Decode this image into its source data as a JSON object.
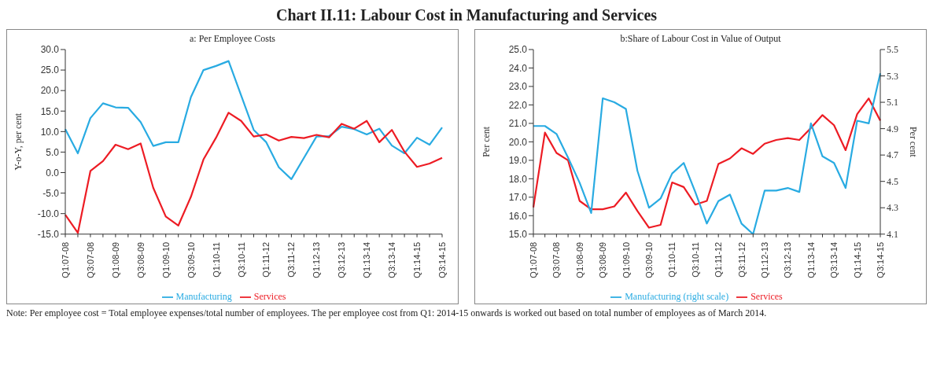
{
  "chart_data": [
    {
      "type": "line",
      "title": "Chart II.11: Labour Cost in Manufacturing and Services",
      "subtitle": "a: Per Employee Costs",
      "ylabel": "Y-o-Y, per cent",
      "categories": [
        "Q1:07-08",
        null,
        "Q3:07-08",
        null,
        "Q1:08-09",
        null,
        "Q3:08-09",
        null,
        "Q1:09-10",
        null,
        "Q3:09-10",
        null,
        "Q1:10-11",
        null,
        "Q3:10-11",
        null,
        "Q1:11-12",
        null,
        "Q3:11-12",
        null,
        "Q1:12-13",
        null,
        "Q3:12-13",
        null,
        "Q1:13-14",
        null,
        "Q3:13-14",
        null,
        "Q1:14-15",
        null,
        "Q3:14-15"
      ],
      "series": [
        {
          "name": "Manufacturing",
          "color": "#29abe2",
          "values": [
            10.6,
            4.7,
            13.3,
            16.9,
            15.9,
            15.8,
            12.3,
            6.5,
            7.4,
            7.4,
            18.4,
            25.0,
            26.0,
            27.2,
            18.8,
            10.4,
            7.4,
            1.3,
            -1.6,
            3.6,
            8.8,
            8.9,
            11.2,
            10.6,
            9.3,
            10.7,
            6.6,
            4.7,
            8.5,
            6.8,
            11.0
          ]
        },
        {
          "name": "Services",
          "color": "#ed1c24",
          "values": [
            -10.3,
            -14.7,
            0.4,
            2.8,
            6.8,
            5.7,
            7.1,
            -3.7,
            -10.7,
            -12.9,
            -5.9,
            3.2,
            8.5,
            14.6,
            12.6,
            8.8,
            9.3,
            7.8,
            8.7,
            8.4,
            9.2,
            8.6,
            11.9,
            10.7,
            12.6,
            7.4,
            10.4,
            5.1,
            1.4,
            2.2,
            3.6
          ]
        }
      ],
      "ylim": [
        -15,
        30
      ],
      "yticks": [
        {
          "value": -15,
          "label": "-15.0"
        },
        {
          "value": -10,
          "label": "-10.0"
        },
        {
          "value": -5,
          "label": "-5.0"
        },
        {
          "value": 0,
          "label": "0.0"
        },
        {
          "value": 5,
          "label": "5.0"
        },
        {
          "value": 10,
          "label": "10.0"
        },
        {
          "value": 15,
          "label": "15.0"
        },
        {
          "value": 20,
          "label": "20.0"
        },
        {
          "value": 25,
          "label": "25.0"
        },
        {
          "value": 30,
          "label": "30.0"
        }
      ],
      "legend": "bottom",
      "marker": "none",
      "line_style": "solid",
      "annotations": [
        "Note: Per employee cost = Total employee expenses/total number of employees. The per employee cost from Q1: 2014-15 onwards is worked out based on total number of employees as of March 2014."
      ]
    },
    {
      "type": "line",
      "subtitle": "b:Share of Labour Cost in Value of Output",
      "ylabel": "Per cent",
      "y2label": "Per cent",
      "categories": [
        "Q1:07-08",
        null,
        "Q3:07-08",
        null,
        "Q1:08-09",
        null,
        "Q3:08-09",
        null,
        "Q1:09-10",
        null,
        "Q3:09-10",
        null,
        "Q1:10-11",
        null,
        "Q3:10-11",
        null,
        "Q1:11-12",
        null,
        "Q3:11-12",
        null,
        "Q1:12-13",
        null,
        "Q3:12-13",
        null,
        "Q1:13-14",
        null,
        "Q3:13-14",
        null,
        "Q1:14-15",
        null,
        "Q3:14-15"
      ],
      "series": [
        {
          "name": "Services",
          "color": "#ed1c24",
          "values": [
            16.45,
            20.5,
            19.4,
            19.0,
            16.8,
            16.35,
            16.35,
            16.5,
            17.25,
            16.25,
            15.35,
            15.5,
            17.8,
            17.55,
            16.6,
            16.8,
            18.8,
            19.1,
            19.65,
            19.35,
            19.9,
            20.1,
            20.2,
            20.1,
            20.75,
            21.45,
            20.9,
            19.55,
            21.5,
            22.35,
            21.15
          ]
        },
        {
          "name": "Manufacturing (right scale)",
          "color": "#29abe2",
          "axis": "y2",
          "values": [
            4.92,
            4.92,
            4.86,
            4.68,
            4.49,
            4.26,
            5.13,
            5.1,
            5.05,
            4.58,
            4.3,
            4.37,
            4.56,
            4.64,
            4.42,
            4.18,
            4.35,
            4.4,
            4.18,
            4.1,
            4.43,
            4.43,
            4.45,
            4.42,
            4.94,
            4.69,
            4.64,
            4.45,
            4.96,
            4.94,
            5.32
          ]
        }
      ],
      "ylim": [
        15,
        25
      ],
      "yticks": [
        {
          "value": 15,
          "label": "15.0"
        },
        {
          "value": 16,
          "label": "16.0"
        },
        {
          "value": 17,
          "label": "17.0"
        },
        {
          "value": 18,
          "label": "18.0"
        },
        {
          "value": 19,
          "label": "19.0"
        },
        {
          "value": 20,
          "label": "20.0"
        },
        {
          "value": 21,
          "label": "21.0"
        },
        {
          "value": 22,
          "label": "22.0"
        },
        {
          "value": 23,
          "label": "23.0"
        },
        {
          "value": 24,
          "label": "24.0"
        },
        {
          "value": 25,
          "label": "25.0"
        }
      ],
      "y2lim": [
        4.1,
        5.5
      ],
      "y2ticks": [
        4.1,
        4.3,
        4.5,
        4.7,
        4.9,
        5.1,
        5.3,
        5.5
      ],
      "legend": "bottom",
      "marker": "none",
      "line_style": "solid"
    }
  ]
}
